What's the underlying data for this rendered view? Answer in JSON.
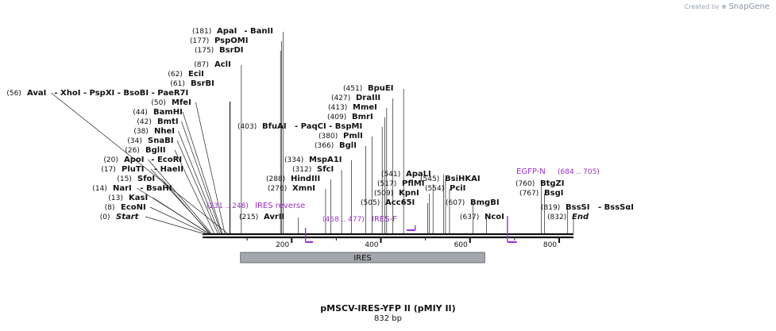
{
  "header": {
    "created_by": "Created by",
    "brand": "SnapGene"
  },
  "map": {
    "title": "pMSCV-IRES-YFP II (pMIY II)",
    "length_label": "832 bp",
    "length_bp": 832,
    "ticks": [
      "200",
      "400",
      "600",
      "800"
    ],
    "feature": {
      "name": "IRES",
      "start": 85,
      "end": 633,
      "color": "#a4a8ae"
    },
    "primers": [
      {
        "name": "IRES reverse",
        "range": "(231 .. 248)",
        "start": 231,
        "end": 248,
        "dir": "reverse"
      },
      {
        "name": "IRES-F",
        "range": "(458 .. 477)",
        "start": 458,
        "end": 477,
        "dir": "forward"
      },
      {
        "name": "EGFP-N",
        "range": "(684 .. 705)",
        "start": 684,
        "end": 705,
        "dir": "reverse"
      }
    ],
    "enzymes": [
      {
        "pos": "(181)",
        "name": "ApaI",
        "extra": "- BanII",
        "bp": 181
      },
      {
        "pos": "(177)",
        "name": "PspOMI",
        "bp": 177
      },
      {
        "pos": "(175)",
        "name": "BsrDI",
        "bp": 175
      },
      {
        "pos": "(87)",
        "name": "AclI",
        "bp": 87
      },
      {
        "pos": "(62)",
        "name": "EciI",
        "bp": 62
      },
      {
        "pos": "(61)",
        "name": "BsrBI",
        "bp": 61
      },
      {
        "pos": "(56)",
        "name": "AvaI",
        "extra": "- XhoI   - PspXI   - BsoBI   - PaeR7I",
        "bp": 56
      },
      {
        "pos": "(50)",
        "name": "MfeI",
        "bp": 50
      },
      {
        "pos": "(44)",
        "name": "BamHI",
        "bp": 44
      },
      {
        "pos": "(42)",
        "name": "BmtI",
        "bp": 42
      },
      {
        "pos": "(38)",
        "name": "NheI",
        "bp": 38
      },
      {
        "pos": "(34)",
        "name": "SnaBI",
        "bp": 34
      },
      {
        "pos": "(26)",
        "name": "BglII",
        "bp": 26
      },
      {
        "pos": "(20)",
        "name": "ApoI",
        "extra": "- EcoRI",
        "bp": 20
      },
      {
        "pos": "(17)",
        "name": "PluTI",
        "extra": "- HaeII",
        "bp": 17
      },
      {
        "pos": "(15)",
        "name": "SfoI",
        "bp": 15
      },
      {
        "pos": "(14)",
        "name": "NarI",
        "extra": "- BsaHI",
        "bp": 14
      },
      {
        "pos": "(13)",
        "name": "KasI",
        "bp": 13
      },
      {
        "pos": "(8)",
        "name": "EcoNI",
        "bp": 8
      },
      {
        "pos": "(0)",
        "name": "Start",
        "italic": true,
        "bp": 0
      },
      {
        "pos": "(215)",
        "name": "AvrII",
        "bp": 215
      },
      {
        "pos": "(276)",
        "name": "XmnI",
        "bp": 276
      },
      {
        "pos": "(288)",
        "name": "HindIII",
        "bp": 288
      },
      {
        "pos": "(312)",
        "name": "SfcI",
        "bp": 312
      },
      {
        "pos": "(334)",
        "name": "MspA1I",
        "bp": 334
      },
      {
        "pos": "(403)",
        "name": "BfuAI",
        "extra": "- PaqCI   - BspMI",
        "bp": 403
      },
      {
        "pos": "(366)",
        "name": "BglI",
        "bp": 366
      },
      {
        "pos": "(380)",
        "name": "PmlI",
        "bp": 380
      },
      {
        "pos": "(409)",
        "name": "BmrI",
        "bp": 409
      },
      {
        "pos": "(413)",
        "name": "MmeI",
        "bp": 413
      },
      {
        "pos": "(427)",
        "name": "DraIII",
        "bp": 427
      },
      {
        "pos": "(451)",
        "name": "BpuEI",
        "bp": 451
      },
      {
        "pos": "(505)",
        "name": "Acc65I",
        "bp": 505
      },
      {
        "pos": "(509)",
        "name": "KpnI",
        "bp": 509
      },
      {
        "pos": "(517)",
        "name": "PflMI",
        "bp": 517
      },
      {
        "pos": "(541)",
        "name": "ApaLI",
        "bp": 541
      },
      {
        "pos": "(545)",
        "name": "BsiHKAI",
        "bp": 545
      },
      {
        "pos": "(554)",
        "name": "PciI",
        "bp": 554
      },
      {
        "pos": "(607)",
        "name": "BmgBI",
        "bp": 607
      },
      {
        "pos": "(637)",
        "name": "NcoI",
        "bp": 637
      },
      {
        "pos": "(760)",
        "name": "BtgZI",
        "bp": 760
      },
      {
        "pos": "(767)",
        "name": "BsgI",
        "bp": 767
      },
      {
        "pos": "(819)",
        "name": "BssSI",
        "extra": "- BssSαI",
        "bp": 819
      },
      {
        "pos": "(832)",
        "name": "End",
        "italic": true,
        "bp": 832
      }
    ]
  }
}
